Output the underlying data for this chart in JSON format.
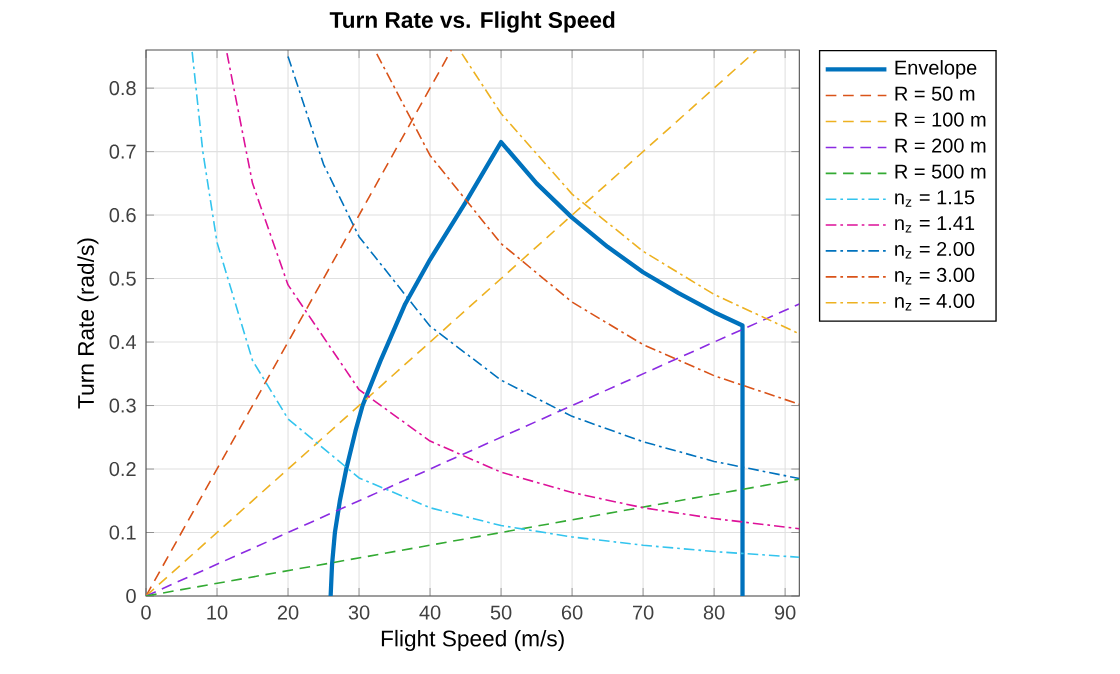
{
  "chart_data": {
    "type": "line",
    "title": "Turn Rate vs. Flight Speed",
    "xlabel": "Flight Speed (m/s)",
    "ylabel": "Turn Rate (rad/s)",
    "xlim": [
      0,
      92
    ],
    "ylim": [
      0,
      0.86
    ],
    "xticks": [
      0,
      10,
      20,
      30,
      40,
      50,
      60,
      70,
      80,
      90
    ],
    "yticks": [
      0,
      0.1,
      0.2,
      0.3,
      0.4,
      0.5,
      0.6,
      0.7,
      0.8
    ],
    "grid": true,
    "legend": "right",
    "series": [
      {
        "name": "Envelope",
        "color": "#0072bd",
        "line_style": "solid",
        "x": [
          26,
          26.2,
          26.6,
          27.3,
          28.2,
          29.5,
          30.5,
          33,
          36.5,
          40,
          45,
          50,
          55,
          60,
          65,
          70,
          75,
          80,
          84,
          84
        ],
        "values": [
          0,
          0.05,
          0.1,
          0.15,
          0.2,
          0.26,
          0.3,
          0.37,
          0.46,
          0.53,
          0.62,
          0.715,
          0.65,
          0.596,
          0.55,
          0.51,
          0.477,
          0.447,
          0.426,
          0
        ]
      },
      {
        "name": "R = 50 m",
        "color": "#d95319",
        "line_style": "dashed",
        "x": [
          0,
          43
        ],
        "values": [
          0,
          0.86
        ]
      },
      {
        "name": "R = 100 m",
        "color": "#edb120",
        "line_style": "dashed",
        "x": [
          0,
          86
        ],
        "values": [
          0,
          0.86
        ]
      },
      {
        "name": "R = 200 m",
        "color": "#8b2be2",
        "line_style": "dashed",
        "x": [
          0,
          92
        ],
        "values": [
          0,
          0.46
        ]
      },
      {
        "name": "R = 500 m",
        "color": "#33aa33",
        "line_style": "dashed",
        "x": [
          0,
          92
        ],
        "values": [
          0,
          0.184
        ]
      },
      {
        "name": "n$_{z}$ = 1.15",
        "color": "#33c4ee",
        "line_style": "dashdot",
        "x": [
          6.5,
          8,
          10,
          15,
          20,
          30,
          40,
          50,
          60,
          70,
          80,
          92
        ],
        "values": [
          0.857,
          0.7,
          0.557,
          0.371,
          0.279,
          0.186,
          0.139,
          0.111,
          0.093,
          0.08,
          0.07,
          0.061
        ]
      },
      {
        "name": "n$_{z}$ = 1.41",
        "color": "#dd1199",
        "line_style": "dashdot",
        "x": [
          11.4,
          15,
          20,
          30,
          40,
          50,
          60,
          70,
          80,
          92
        ],
        "values": [
          0.855,
          0.65,
          0.49,
          0.325,
          0.244,
          0.195,
          0.163,
          0.139,
          0.122,
          0.106
        ]
      },
      {
        "name": "n$_{z}$ = 2.00",
        "color": "#0072bd",
        "line_style": "dashdot",
        "x": [
          20,
          25,
          30,
          40,
          50,
          60,
          70,
          80,
          92
        ],
        "values": [
          0.85,
          0.68,
          0.566,
          0.425,
          0.34,
          0.283,
          0.243,
          0.212,
          0.185
        ]
      },
      {
        "name": "n$_{z}$ = 3.00",
        "color": "#d95319",
        "line_style": "dashdot",
        "x": [
          32.5,
          40,
          50,
          60,
          70,
          80,
          92
        ],
        "values": [
          0.854,
          0.694,
          0.555,
          0.463,
          0.396,
          0.347,
          0.302
        ]
      },
      {
        "name": "n$_{z}$ = 4.00",
        "color": "#edb120",
        "line_style": "dashdot",
        "x": [
          44.5,
          50,
          60,
          70,
          80,
          92
        ],
        "values": [
          0.854,
          0.76,
          0.633,
          0.543,
          0.475,
          0.413
        ]
      }
    ]
  }
}
